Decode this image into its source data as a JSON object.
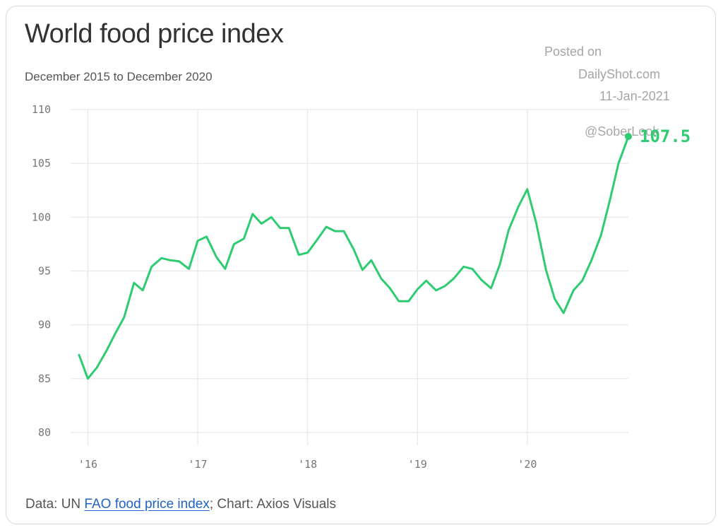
{
  "header": {
    "title": "World food price index",
    "subtitle": "December 2015 to December 2020"
  },
  "posted": {
    "line1": "Posted on",
    "line2": "DailyShot.com",
    "line3": "11-Jan-2021",
    "handle": "@SoberLook"
  },
  "footer": {
    "prefix": "Data: UN ",
    "link": "FAO food price index",
    "suffix": "; Chart: Axios Visuals"
  },
  "colors": {
    "line": "#2ecc71",
    "grid": "#e6e6e6"
  },
  "chart_data": {
    "type": "line",
    "title": "World food price index",
    "subtitle": "December 2015 to December 2020",
    "xlabel": "",
    "ylabel": "",
    "xlim": [
      2015.92,
      2020.92
    ],
    "ylim": [
      80,
      110
    ],
    "yticks": [
      80,
      85,
      90,
      95,
      100,
      105,
      110
    ],
    "xticks": [
      {
        "value": 2016,
        "label": "'16"
      },
      {
        "value": 2017,
        "label": "'17"
      },
      {
        "value": 2018,
        "label": "'18"
      },
      {
        "value": 2019,
        "label": "'19"
      },
      {
        "value": 2020,
        "label": "'20"
      }
    ],
    "grid": true,
    "series": [
      {
        "name": "FAO food price index",
        "x": [
          2015.92,
          2016.0,
          2016.08,
          2016.17,
          2016.25,
          2016.33,
          2016.42,
          2016.5,
          2016.58,
          2016.67,
          2016.75,
          2016.83,
          2016.92,
          2017.0,
          2017.08,
          2017.17,
          2017.25,
          2017.33,
          2017.42,
          2017.5,
          2017.58,
          2017.67,
          2017.75,
          2017.83,
          2017.92,
          2018.0,
          2018.08,
          2018.17,
          2018.25,
          2018.33,
          2018.42,
          2018.5,
          2018.58,
          2018.67,
          2018.75,
          2018.83,
          2018.92,
          2019.0,
          2019.08,
          2019.17,
          2019.25,
          2019.33,
          2019.42,
          2019.5,
          2019.58,
          2019.67,
          2019.75,
          2019.83,
          2019.92,
          2020.0,
          2020.08,
          2020.17,
          2020.25,
          2020.33,
          2020.42,
          2020.5,
          2020.58,
          2020.67,
          2020.75,
          2020.83,
          2020.92
        ],
        "values": [
          87.2,
          85.0,
          86.0,
          87.6,
          89.2,
          90.7,
          93.9,
          93.2,
          95.4,
          96.2,
          96.0,
          95.9,
          95.2,
          97.8,
          98.2,
          96.3,
          95.2,
          97.5,
          98.0,
          100.3,
          99.4,
          100.0,
          99.0,
          99.0,
          96.5,
          96.7,
          97.8,
          99.1,
          98.7,
          98.7,
          97.0,
          95.1,
          96.0,
          94.3,
          93.4,
          92.2,
          92.2,
          93.3,
          94.1,
          93.2,
          93.6,
          94.3,
          95.4,
          95.2,
          94.2,
          93.4,
          95.6,
          98.8,
          101.0,
          102.6,
          99.5,
          95.1,
          92.4,
          91.1,
          93.2,
          94.1,
          95.9,
          98.3,
          101.5,
          105.0,
          107.5
        ]
      }
    ],
    "last_label": "107.5"
  }
}
